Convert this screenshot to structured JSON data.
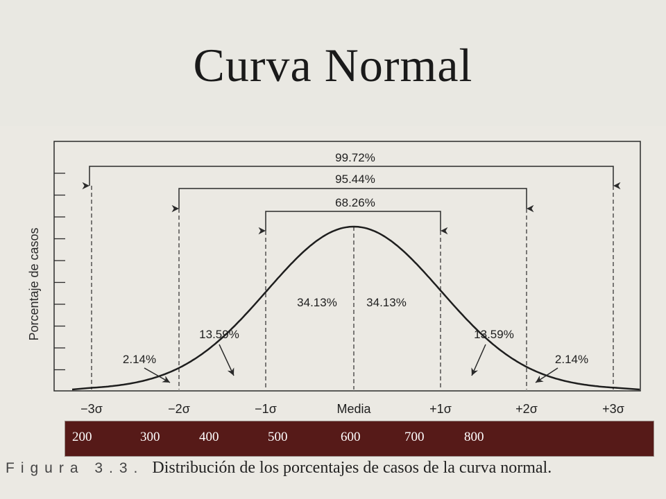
{
  "slide": {
    "title": "Curva Normal"
  },
  "figure": {
    "y_axis_label": "Porcentaje de casos",
    "x_labels": [
      "−3σ",
      "−2σ",
      "−1σ",
      "Media",
      "+1σ",
      "+2σ",
      "+3σ"
    ],
    "brackets": [
      "99.72%",
      "95.44%",
      "68.26%"
    ],
    "regions": {
      "center_left": "34.13%",
      "center_right": "34.13%",
      "mid_left": "13.59%",
      "mid_right": "13.59%",
      "tail_left": "2.14%",
      "tail_right": "2.14%"
    },
    "curve": {
      "type": "normal",
      "mean": 0,
      "sd": 1,
      "x_range": [
        -3,
        3
      ]
    }
  },
  "score_bar": {
    "values": [
      "200",
      "300",
      "400",
      "500",
      "600",
      "700",
      "800"
    ]
  },
  "caption": {
    "label": "Figura 3.3.",
    "text": "Distribución de los porcentajes de casos de la curva normal."
  }
}
